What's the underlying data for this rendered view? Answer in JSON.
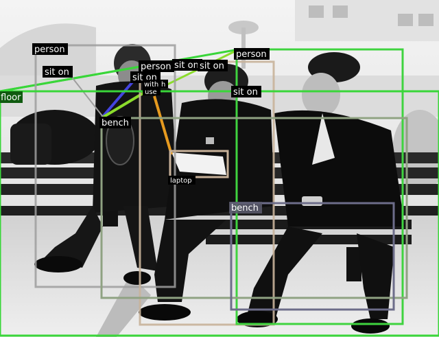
{
  "scene": {
    "kind": "scene-graph-annotation",
    "photo_style": "grayscale"
  },
  "objects": [
    {
      "id": "person_left",
      "label": "person",
      "color": "#9e9e9e"
    },
    {
      "id": "person_mid",
      "label": "person",
      "color": "#c8b29a"
    },
    {
      "id": "person_right",
      "label": "person",
      "color": "#3fd33f"
    },
    {
      "id": "bench_main",
      "label": "bench",
      "color": "#8fa282"
    },
    {
      "id": "bench_right",
      "label": "bench",
      "color": "#6d6d8a"
    },
    {
      "id": "laptop",
      "label": "laptop",
      "color": "#c8b29a"
    },
    {
      "id": "floor",
      "label": "floor",
      "color": "#39d639"
    }
  ],
  "relations": [
    {
      "label": "sit on",
      "color": "#39d639"
    },
    {
      "label": "sit on",
      "color": "#4444e0"
    },
    {
      "label": "sit on",
      "color": "#8bdc2c"
    },
    {
      "label": "sit on",
      "color": "#39d639"
    },
    {
      "label": "with",
      "color": "#e69a1f"
    },
    {
      "label": "use",
      "color": "#e69a1f"
    }
  ],
  "extra_labels": [
    {
      "label": "h"
    }
  ]
}
